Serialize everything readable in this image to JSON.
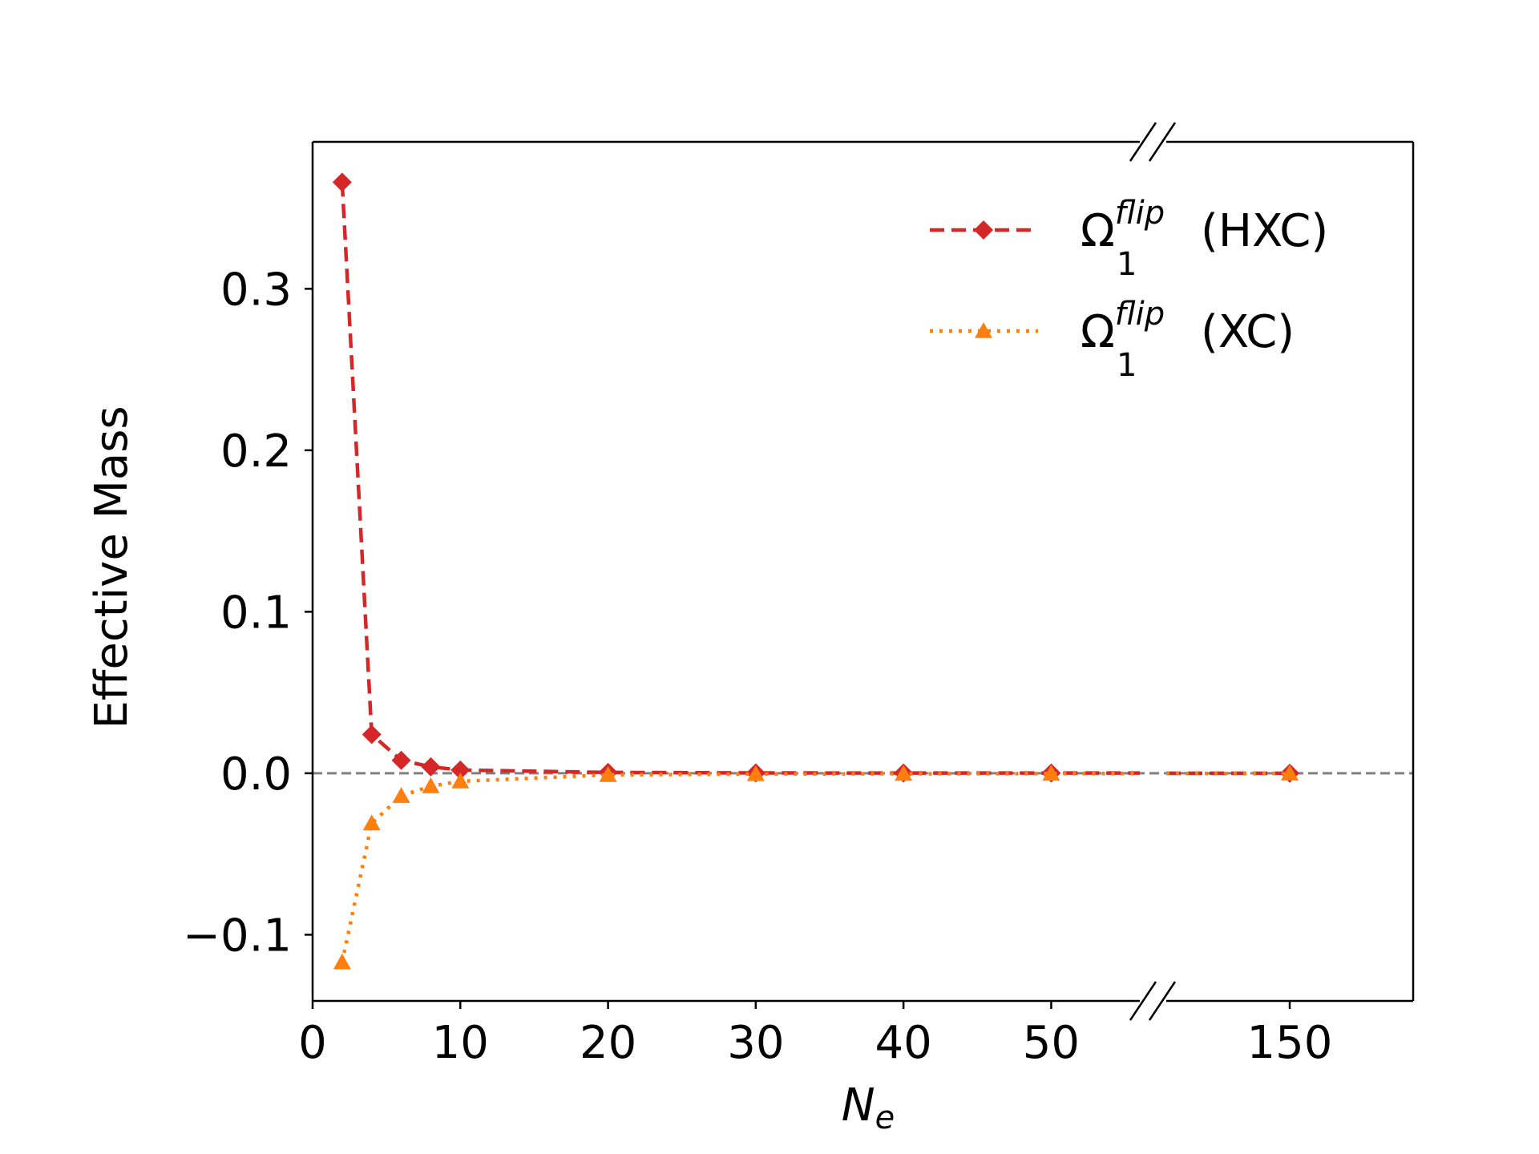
{
  "chart_data": {
    "type": "line",
    "xlabel": "N",
    "xlabel_sub": "e",
    "ylabel": "Effective Mass",
    "x_ticks": [
      0,
      10,
      20,
      30,
      40,
      50,
      150
    ],
    "y_ticks": [
      -0.1,
      0.0,
      0.1,
      0.2,
      0.3
    ],
    "y_tick_labels": [
      "−0.1",
      "0.0",
      "0.1",
      "0.2",
      "0.3"
    ],
    "ylim": [
      -0.141,
      0.391
    ],
    "xlim_main": [
      0,
      56
    ],
    "xlim_break": [
      149,
      151
    ],
    "axis_break": true,
    "zero_reference_line": true,
    "legend_position": "upper-right",
    "grid": false,
    "x": [
      2,
      4,
      6,
      8,
      10,
      20,
      30,
      40,
      50,
      150
    ],
    "series": [
      {
        "name": "Ω",
        "name_sub": "1",
        "name_sup": "flip",
        "name_suffix": "(HXC)",
        "values": [
          0.366,
          0.024,
          0.008,
          0.004,
          0.002,
          0.0005,
          0.0002,
          0.0001,
          0.0001,
          0.0
        ],
        "color": "#d62728",
        "marker": "diamond",
        "linestyle": "dashed"
      },
      {
        "name": "Ω",
        "name_sub": "1",
        "name_sup": "flip",
        "name_suffix": "(XC)",
        "values": [
          -0.117,
          -0.031,
          -0.014,
          -0.008,
          -0.005,
          -0.001,
          -0.0005,
          -0.0003,
          -0.0002,
          -0.0001
        ],
        "color": "#ff7f0e",
        "marker": "triangle",
        "linestyle": "dotted"
      }
    ]
  }
}
